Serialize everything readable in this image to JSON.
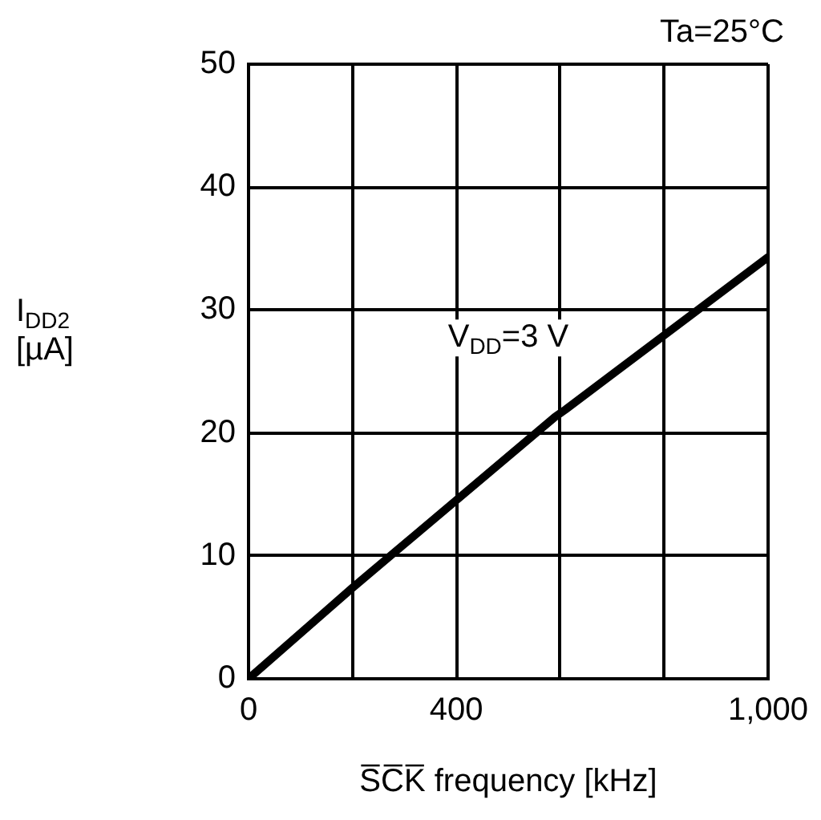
{
  "chart_data": {
    "type": "line",
    "xlabel": "S̅C̅K̅ frequency [kHz]",
    "ylabel": "I$_{DD2}$ [µA]",
    "x": [
      0,
      200,
      590,
      610,
      1000
    ],
    "series": [
      {
        "color": "#000000",
        "values": [
          0,
          7.4,
          21.3,
          21.9,
          34.3
        ]
      }
    ],
    "xlim": [
      0,
      1000
    ],
    "xticks": [
      0,
      {
        "value": 200,
        "label": null
      },
      400,
      {
        "value": 600,
        "label": null
      },
      {
        "value": 800,
        "label": null
      },
      {
        "value": 1000,
        "label": "1,000"
      }
    ],
    "ylim": [
      0,
      50
    ],
    "yticks": [
      0,
      10,
      20,
      30,
      40,
      50
    ],
    "grid": true,
    "legend": false,
    "marker": "none",
    "line_style": "solid",
    "annotations": [
      "Ta=25°C",
      "V$_{DD}$=3 V"
    ]
  }
}
